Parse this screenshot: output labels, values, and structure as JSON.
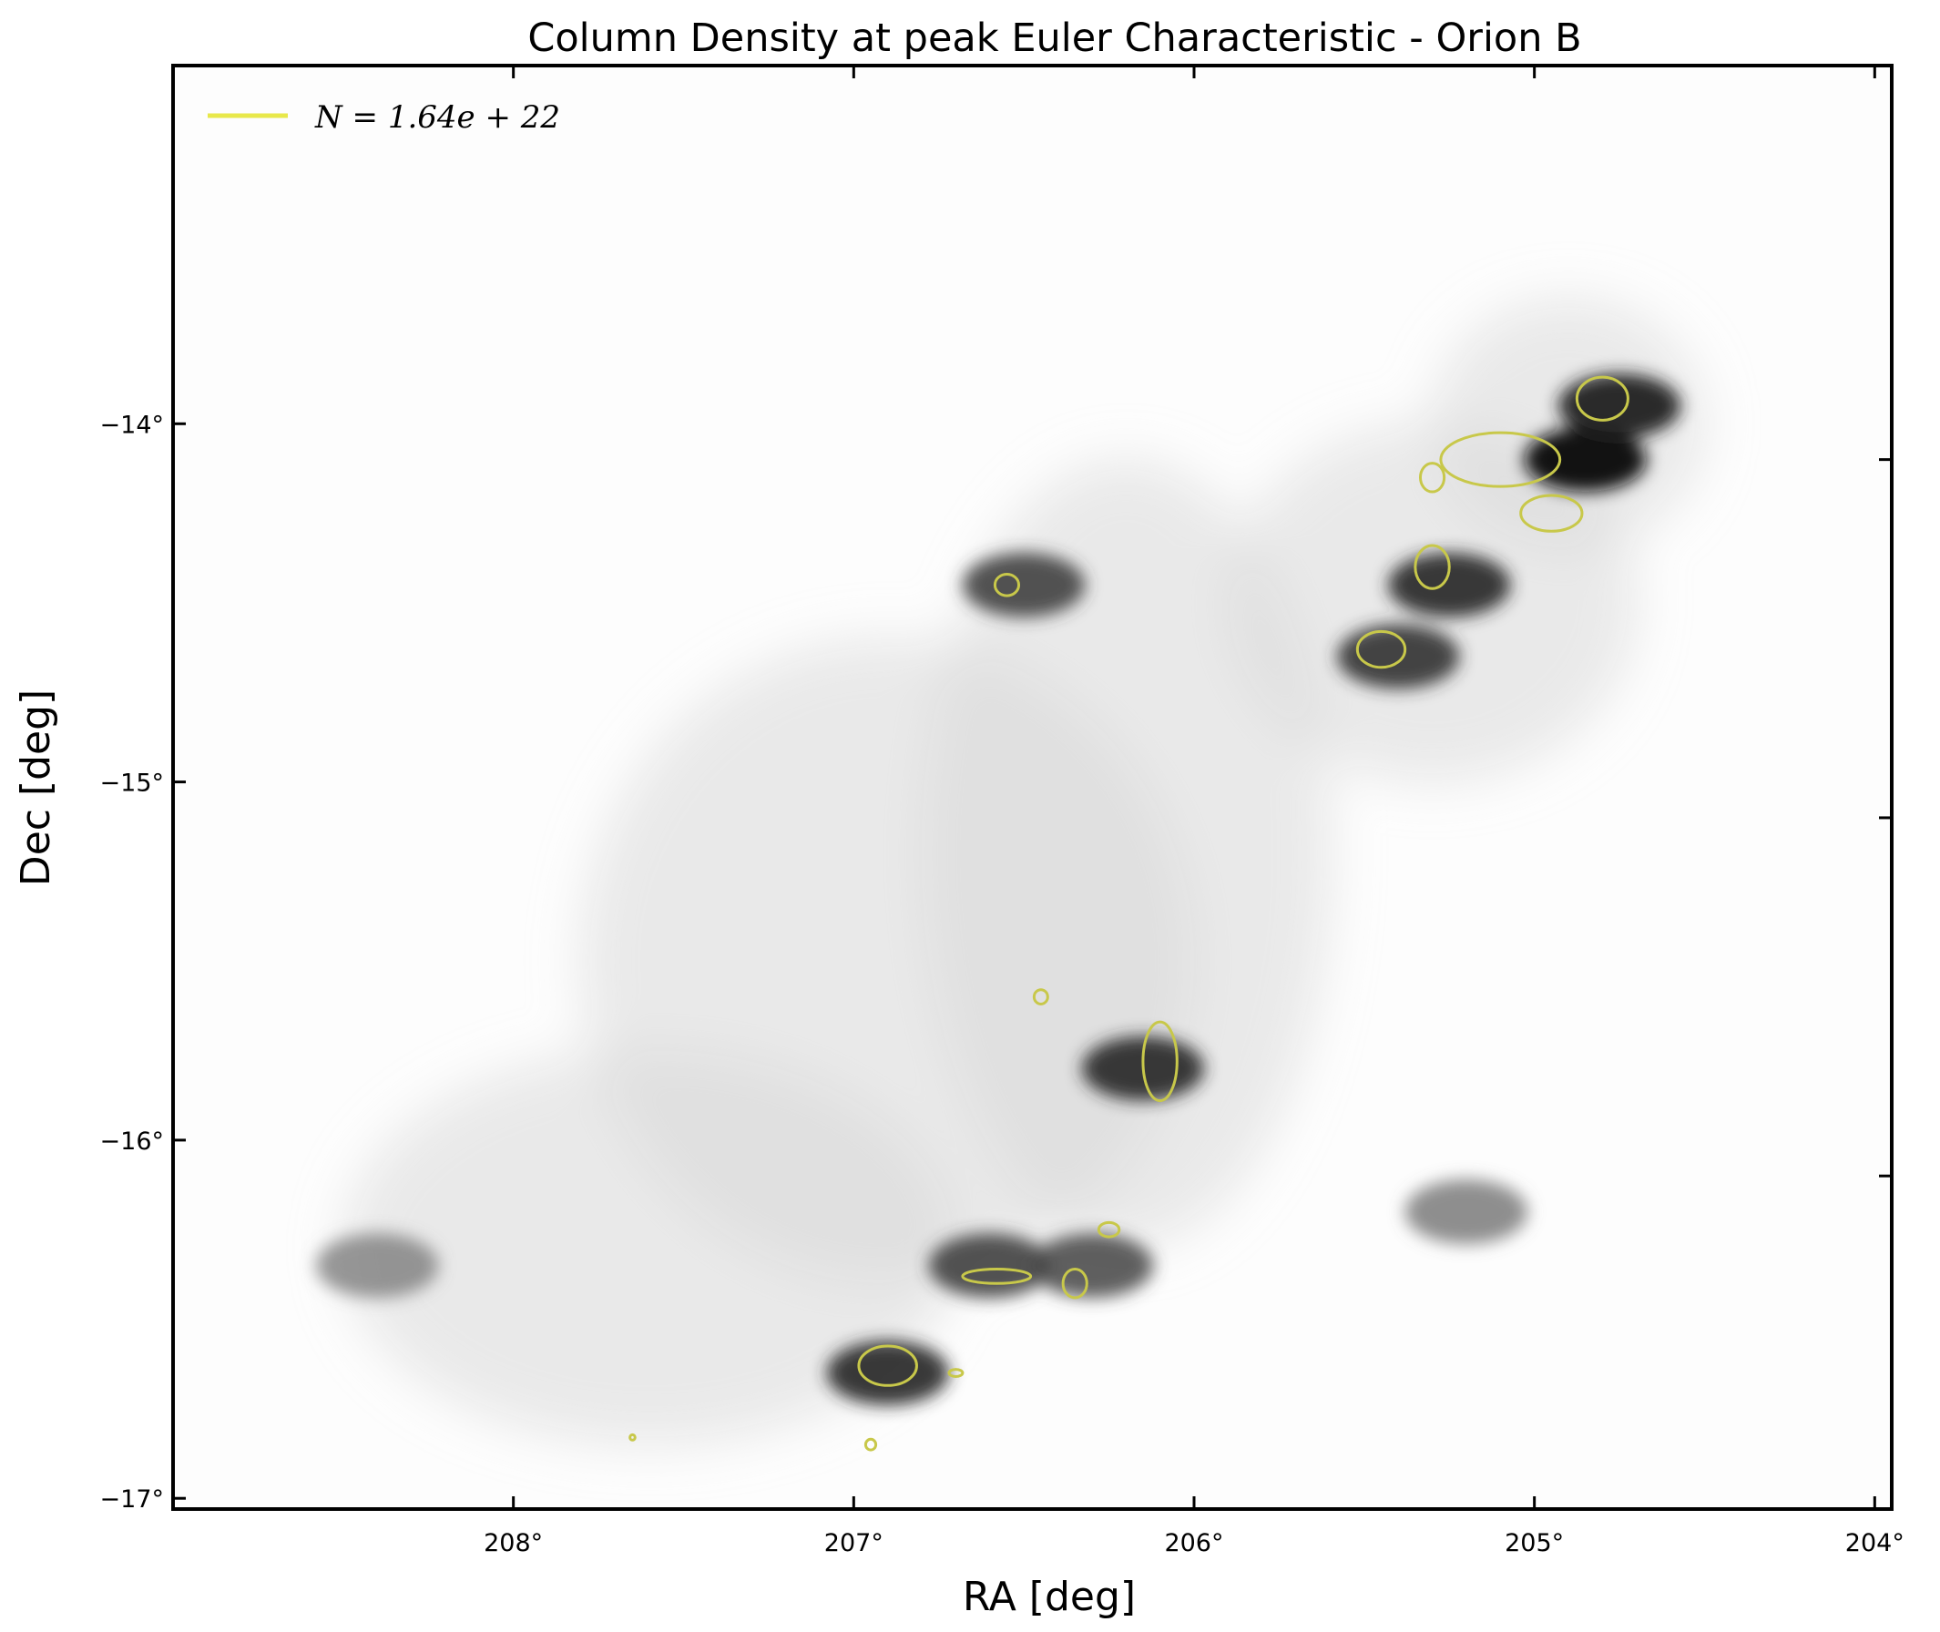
{
  "chart_data": {
    "type": "heatmap",
    "title": "Column Density at peak Euler Characteristic - Orion B",
    "xlabel": "RA [deg]",
    "ylabel": "Dec [deg]",
    "xlim": [
      209.0,
      203.95
    ],
    "ylim": [
      -17.03,
      -13.0
    ],
    "x_ticks": [
      {
        "value": 208,
        "label": "208°"
      },
      {
        "value": 207,
        "label": "207°"
      },
      {
        "value": 206,
        "label": "206°"
      },
      {
        "value": 205,
        "label": "205°"
      },
      {
        "value": 204,
        "label": "204°"
      }
    ],
    "y_ticks": [
      {
        "value": -14,
        "label": "−14°"
      },
      {
        "value": -15,
        "label": "−15°"
      },
      {
        "value": -16,
        "label": "−16°"
      },
      {
        "value": -17,
        "label": "−17°"
      }
    ],
    "right_ticks": [
      -14.1,
      -15.1,
      -16.1
    ],
    "colormap": "gray_r",
    "grid": false,
    "legend": {
      "placement": "upper-left",
      "entries": [
        {
          "label": "N = 1.64e + 22",
          "color": "#e8e84a"
        }
      ]
    },
    "contour_color": "#c8c84a",
    "dense_regions": [
      {
        "ra": 204.85,
        "dec": -14.1,
        "strength": 0.95
      },
      {
        "ra": 204.75,
        "dec": -13.95,
        "strength": 0.85
      },
      {
        "ra": 205.25,
        "dec": -14.45,
        "strength": 0.8
      },
      {
        "ra": 205.4,
        "dec": -14.65,
        "strength": 0.75
      },
      {
        "ra": 206.5,
        "dec": -14.45,
        "strength": 0.7
      },
      {
        "ra": 206.15,
        "dec": -15.8,
        "strength": 0.8
      },
      {
        "ra": 206.9,
        "dec": -16.65,
        "strength": 0.8
      },
      {
        "ra": 206.6,
        "dec": -16.35,
        "strength": 0.7
      },
      {
        "ra": 206.3,
        "dec": -16.35,
        "strength": 0.65
      },
      {
        "ra": 205.2,
        "dec": -16.2,
        "strength": 0.45
      },
      {
        "ra": 208.4,
        "dec": -16.35,
        "strength": 0.4
      }
    ],
    "contours": [
      {
        "ra": 204.8,
        "dec": -13.93,
        "w": 0.15,
        "h": 0.12
      },
      {
        "ra": 205.1,
        "dec": -14.1,
        "w": 0.35,
        "h": 0.15
      },
      {
        "ra": 204.95,
        "dec": -14.25,
        "w": 0.18,
        "h": 0.1
      },
      {
        "ra": 205.3,
        "dec": -14.15,
        "w": 0.07,
        "h": 0.08
      },
      {
        "ra": 205.3,
        "dec": -14.4,
        "w": 0.1,
        "h": 0.12
      },
      {
        "ra": 205.45,
        "dec": -14.63,
        "w": 0.14,
        "h": 0.1
      },
      {
        "ra": 206.55,
        "dec": -14.45,
        "w": 0.07,
        "h": 0.06
      },
      {
        "ra": 206.1,
        "dec": -15.78,
        "w": 0.1,
        "h": 0.22
      },
      {
        "ra": 206.45,
        "dec": -15.6,
        "w": 0.04,
        "h": 0.04
      },
      {
        "ra": 206.9,
        "dec": -16.63,
        "w": 0.17,
        "h": 0.11
      },
      {
        "ra": 206.58,
        "dec": -16.38,
        "w": 0.2,
        "h": 0.04
      },
      {
        "ra": 206.35,
        "dec": -16.4,
        "w": 0.07,
        "h": 0.08
      },
      {
        "ra": 206.25,
        "dec": -16.25,
        "w": 0.06,
        "h": 0.04
      },
      {
        "ra": 206.7,
        "dec": -16.65,
        "w": 0.04,
        "h": 0.02
      },
      {
        "ra": 206.95,
        "dec": -16.85,
        "w": 0.03,
        "h": 0.03
      },
      {
        "ra": 207.65,
        "dec": -16.83,
        "w": 0.015,
        "h": 0.015
      }
    ]
  }
}
